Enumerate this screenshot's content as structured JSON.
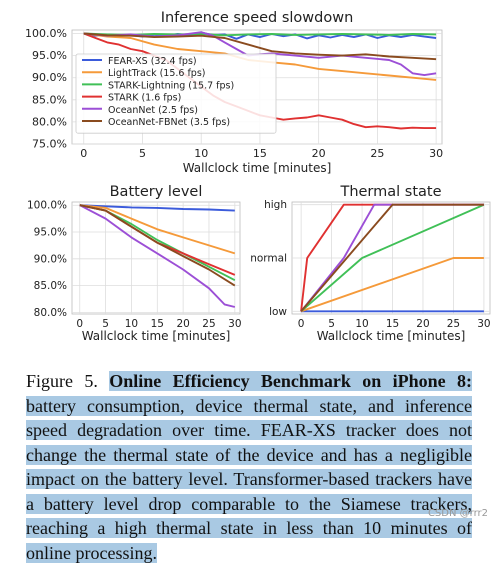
{
  "chart_data": [
    {
      "id": "speed",
      "type": "line",
      "title": "Inference speed slowdown",
      "xlabel": "Wallclock time [minutes]",
      "ylabel": "",
      "xlim": [
        -1,
        30.5
      ],
      "ylim": [
        75,
        100.8
      ],
      "xticks": [
        "0",
        "5",
        "10",
        "15",
        "20",
        "25",
        "30"
      ],
      "xtick_values": [
        0,
        5,
        10,
        15,
        20,
        25,
        30
      ],
      "yticks": [
        "75.0%",
        "80.0%",
        "85.0%",
        "90.0%",
        "95.0%",
        "100.0%"
      ],
      "ytick_values": [
        75,
        80,
        85,
        90,
        95,
        100
      ],
      "grid": true,
      "legend": "lower-left",
      "series": [
        {
          "name": "FEAR-XS (32.4 fps)",
          "color": "#3b5bdb",
          "x": [
            0,
            1,
            2,
            3,
            4,
            5,
            6,
            7,
            8,
            9,
            10,
            11,
            12,
            13,
            14,
            15,
            16,
            17,
            18,
            19,
            20,
            21,
            22,
            23,
            24,
            25,
            26,
            27,
            28,
            29,
            30
          ],
          "y": [
            100,
            99.5,
            99.8,
            99.6,
            99.7,
            99.3,
            99.8,
            99.5,
            99.9,
            99.6,
            100.2,
            99.7,
            99.8,
            98.8,
            99.8,
            99.2,
            99.9,
            99.4,
            99.8,
            98.9,
            99.6,
            99.1,
            99.7,
            99.2,
            99.8,
            99,
            99.6,
            99.2,
            99.7,
            99.3,
            99
          ]
        },
        {
          "name": "LightTrack (15.6 fps)",
          "color": "#f59a3a",
          "x": [
            0,
            2,
            4,
            6,
            8,
            10,
            12,
            14,
            16,
            18,
            20,
            22,
            24,
            26,
            28,
            30
          ],
          "y": [
            100,
            99.3,
            99,
            97.5,
            96.5,
            96,
            95.5,
            94,
            93.5,
            93,
            92,
            91.5,
            91,
            90.5,
            90,
            89.5
          ]
        },
        {
          "name": "STARK-Lightning (15.7 fps)",
          "color": "#40c057",
          "x": [
            0,
            2,
            4,
            6,
            8,
            10,
            12,
            14,
            16,
            18,
            20,
            22,
            24,
            26,
            28,
            30
          ],
          "y": [
            100,
            99.8,
            99.7,
            99.9,
            99.8,
            99.9,
            99.6,
            99.8,
            99.9,
            99.7,
            99.8,
            99.9,
            99.8,
            99.7,
            99.9,
            99.8
          ]
        },
        {
          "name": "STARK (1.6 fps)",
          "color": "#e03131",
          "x": [
            0,
            1,
            2,
            3,
            4,
            5,
            6,
            7,
            8,
            9,
            10,
            11,
            12,
            13,
            14,
            15,
            16,
            17,
            18,
            19,
            20,
            21,
            22,
            23,
            24,
            25,
            26,
            27,
            28,
            29,
            30
          ],
          "y": [
            100,
            99,
            98,
            97.5,
            96.5,
            96,
            95,
            94,
            92,
            90,
            88,
            86,
            84.5,
            83.5,
            82.5,
            81.5,
            81,
            80.5,
            80.8,
            81,
            81.5,
            81,
            80.5,
            79.5,
            78.8,
            79,
            78.8,
            78.5,
            78.7,
            78.6,
            78.6
          ]
        },
        {
          "name": "OceanNet (2.5 fps)",
          "color": "#9c4fd6",
          "x": [
            0,
            2,
            4,
            6,
            8,
            10,
            11,
            12,
            13,
            14,
            15,
            16,
            18,
            20,
            22,
            24,
            26,
            27,
            28,
            29,
            30
          ],
          "y": [
            100,
            99.5,
            99.8,
            99.3,
            99.6,
            100.3,
            99.5,
            98,
            96.5,
            95,
            95.3,
            95.5,
            95,
            94.5,
            95,
            94.5,
            94,
            93,
            91,
            90.6,
            91
          ]
        },
        {
          "name": "OceanNet-FBNet (3.5 fps)",
          "color": "#8a4b1f",
          "x": [
            0,
            2,
            4,
            6,
            8,
            10,
            12,
            14,
            16,
            18,
            20,
            22,
            24,
            26,
            28,
            30
          ],
          "y": [
            100,
            99.6,
            99.5,
            99.2,
            99.3,
            99.5,
            99,
            97.5,
            96,
            95.5,
            95.2,
            95,
            95.3,
            94.8,
            94.5,
            94.2
          ]
        }
      ]
    },
    {
      "id": "battery",
      "type": "line",
      "title": "Battery level",
      "xlabel": "Wallclock time [minutes]",
      "ylabel": "",
      "xlim": [
        -1.5,
        31
      ],
      "ylim": [
        79.7,
        100.6
      ],
      "xticks": [
        "0",
        "5",
        "10",
        "15",
        "20",
        "25",
        "30"
      ],
      "xtick_values": [
        0,
        5,
        10,
        15,
        20,
        25,
        30
      ],
      "yticks": [
        "80.0%",
        "85.0%",
        "90.0%",
        "95.0%",
        "100.0%"
      ],
      "ytick_values": [
        80,
        85,
        90,
        95,
        100
      ],
      "grid": true,
      "series": [
        {
          "name": "FEAR-XS",
          "color": "#3b5bdb",
          "x": [
            0,
            5,
            10,
            15,
            20,
            25,
            30
          ],
          "y": [
            100,
            99.8,
            99.6,
            99.5,
            99.3,
            99.2,
            99
          ]
        },
        {
          "name": "LightTrack",
          "color": "#f59a3a",
          "x": [
            0,
            5,
            10,
            15,
            20,
            25,
            30
          ],
          "y": [
            100,
            99.5,
            97.5,
            95.5,
            94,
            92.5,
            91
          ]
        },
        {
          "name": "STARK-Lightning",
          "color": "#40c057",
          "x": [
            0,
            5,
            10,
            15,
            20,
            25,
            30
          ],
          "y": [
            100,
            99,
            96.5,
            93.5,
            91,
            88.5,
            86
          ]
        },
        {
          "name": "STARK",
          "color": "#e03131",
          "x": [
            0,
            5,
            10,
            15,
            20,
            25,
            30
          ],
          "y": [
            100,
            99,
            96,
            93,
            91,
            89,
            87
          ]
        },
        {
          "name": "OceanNet",
          "color": "#9c4fd6",
          "x": [
            0,
            5,
            10,
            15,
            20,
            25,
            28,
            30
          ],
          "y": [
            100,
            97.5,
            94,
            91,
            88,
            84.5,
            81.5,
            81
          ]
        },
        {
          "name": "OceanNet-FBNet",
          "color": "#8a4b1f",
          "x": [
            0,
            5,
            10,
            15,
            20,
            25,
            30
          ],
          "y": [
            100,
            99,
            96,
            93,
            90.5,
            88,
            85
          ]
        }
      ]
    },
    {
      "id": "thermal",
      "type": "line",
      "title": "Thermal state",
      "xlabel": "Wallclock time [minutes]",
      "ylabel": "",
      "xlim": [
        -1.5,
        31
      ],
      "ylim": [
        -0.05,
        2.05
      ],
      "xticks": [
        "0",
        "5",
        "10",
        "15",
        "20",
        "25",
        "30"
      ],
      "xtick_values": [
        0,
        5,
        10,
        15,
        20,
        25,
        30
      ],
      "yticks": [
        "low",
        "normal",
        "high"
      ],
      "ytick_values": [
        0,
        1,
        2
      ],
      "grid": true,
      "series": [
        {
          "name": "FEAR-XS",
          "color": "#3b5bdb",
          "x": [
            0,
            30
          ],
          "y": [
            0,
            0
          ]
        },
        {
          "name": "LightTrack",
          "color": "#f59a3a",
          "x": [
            0,
            25,
            30
          ],
          "y": [
            0,
            1,
            1
          ]
        },
        {
          "name": "STARK-Lightning",
          "color": "#40c057",
          "x": [
            0,
            10,
            30
          ],
          "y": [
            0,
            1,
            2
          ]
        },
        {
          "name": "STARK",
          "color": "#e03131",
          "x": [
            0,
            1,
            7,
            30
          ],
          "y": [
            0,
            1,
            2,
            2
          ]
        },
        {
          "name": "OceanNet",
          "color": "#9c4fd6",
          "x": [
            0,
            7,
            12,
            30
          ],
          "y": [
            0,
            1,
            2,
            2
          ]
        },
        {
          "name": "OceanNet-FBNet",
          "color": "#8a4b1f",
          "x": [
            0,
            15,
            30
          ],
          "y": [
            0,
            2,
            2
          ]
        }
      ]
    }
  ],
  "caption": {
    "label": "Figure 5.",
    "bold_title": "Online Efficiency Benchmark on iPhone 8:",
    "body": " battery consumption, device thermal state, and inference speed degradation over time.  FEAR-XS tracker does not change the thermal state of the device and has a negligible impact on the battery level. Transformer-based trackers have a battery level drop comparable to the Siamese trackers, reaching a high thermal state in less than 10 minutes of online processing."
  },
  "watermark": "CSDN @rrr2"
}
